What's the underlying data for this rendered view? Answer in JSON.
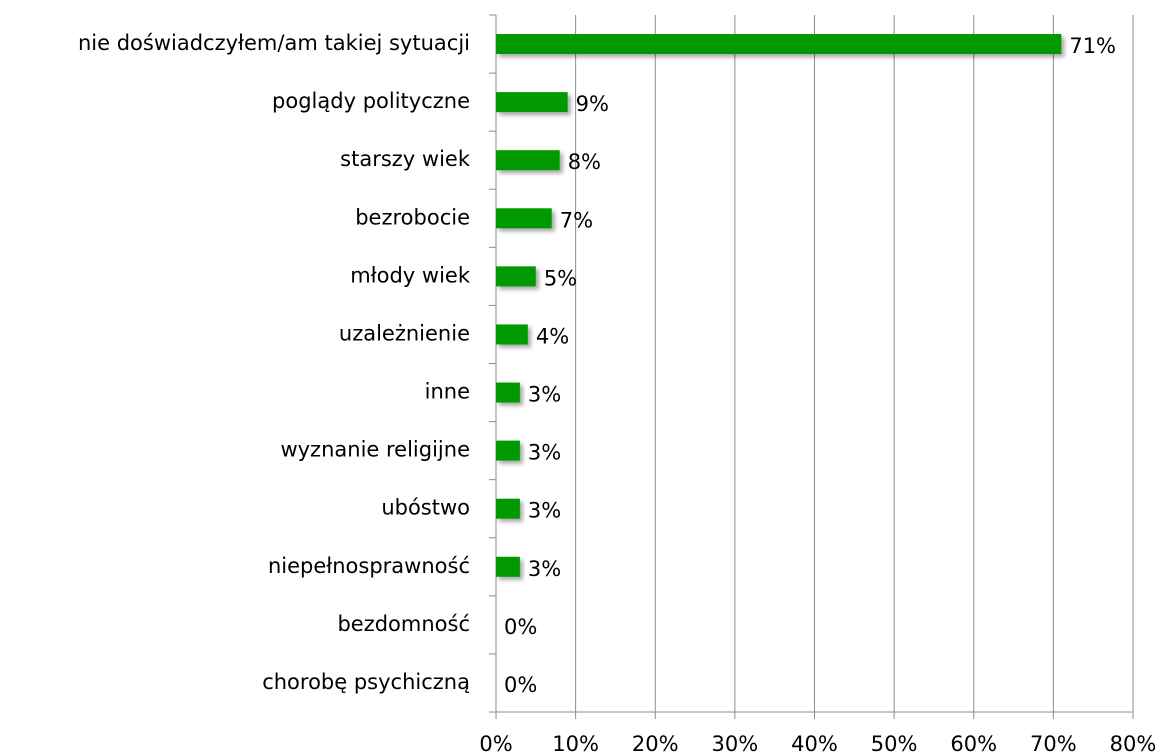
{
  "chart_data": {
    "type": "barh",
    "categories": [
      "nie doświadczyłem/am takiej sytuacji",
      "poglądy polityczne",
      "starszy wiek",
      "bezrobocie",
      "młody wiek",
      "uzależnienie",
      "inne",
      "wyznanie religijne",
      "ubóstwo",
      "niepełnosprawność",
      "bezdomność",
      "chorobę psychiczną"
    ],
    "values": [
      71,
      9,
      8,
      7,
      5,
      4,
      3,
      3,
      3,
      3,
      0,
      0
    ],
    "value_labels": [
      "71%",
      "9%",
      "8%",
      "7%",
      "5%",
      "4%",
      "3%",
      "3%",
      "3%",
      "3%",
      "0%",
      "0%"
    ],
    "color": "#009a00",
    "xlim": [
      0,
      80
    ],
    "xticks": [
      {
        "value": 0,
        "label": "0%"
      },
      {
        "value": 10,
        "label": "10%"
      },
      {
        "value": 20,
        "label": "20%"
      },
      {
        "value": 30,
        "label": "30%"
      },
      {
        "value": 40,
        "label": "40%"
      },
      {
        "value": 50,
        "label": "50%"
      },
      {
        "value": 60,
        "label": "60%"
      },
      {
        "value": 70,
        "label": "70%"
      },
      {
        "value": 80,
        "label": "80%"
      }
    ],
    "grid": true
  }
}
